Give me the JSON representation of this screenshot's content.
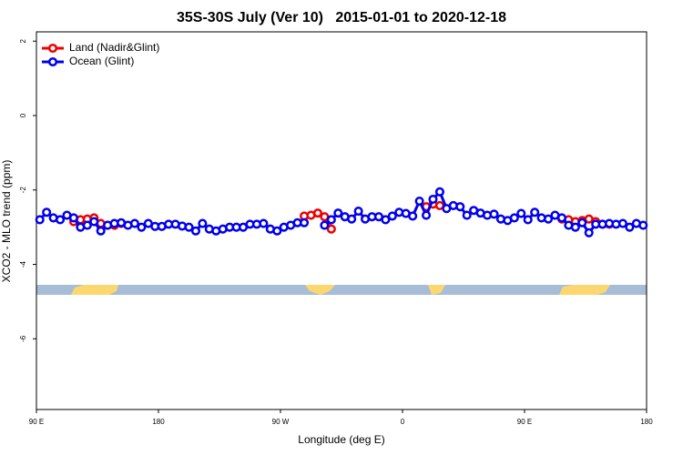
{
  "chart_data": {
    "type": "line",
    "title": "35S-30S July (Ver 10)   2015-01-01 to 2020-12-18",
    "x_label": "Longitude (deg E)",
    "y_label": "XCO2 - MLO trend (ppm)",
    "xlim": [
      90,
      540
    ],
    "xticks": [
      {
        "value": 90,
        "label": "90 E"
      },
      180,
      {
        "value": 270,
        "label": "90 W"
      },
      {
        "value": 360,
        "label": "0"
      },
      {
        "value": 450,
        "label": "90 E"
      },
      {
        "value": 540,
        "label": "180"
      }
    ],
    "ylim": [
      -7.9,
      2.25
    ],
    "yticks": [
      2,
      0,
      -2,
      -4,
      -6
    ],
    "legend": "top-left",
    "series": [
      {
        "name": "Land (Nadir&Glint)",
        "color": "#ee0000",
        "x": [
          117.5,
          122.5,
          127.5,
          132.5,
          137.5,
          142.5,
          147.5,
          152.5,
          157.5,
          287.5,
          292.5,
          297.5,
          302.5,
          307.5,
          312.5,
          377.5,
          382.5,
          387.5,
          392.5,
          477.5,
          482.5,
          487.5,
          492.5,
          497.5,
          502.5,
          507.5,
          512.5
        ],
        "values": [
          -2.85,
          -2.8,
          -2.78,
          -2.75,
          -2.9,
          -2.95,
          -2.95,
          -2.9,
          null,
          -2.7,
          -2.68,
          -2.62,
          -2.72,
          -3.05,
          null,
          -2.45,
          -2.38,
          -2.42,
          null,
          -2.78,
          -2.8,
          -2.85,
          -2.82,
          -2.78,
          -2.85,
          -2.92,
          -2.92
        ]
      },
      {
        "name": "Ocean (Glint)",
        "color": "#0000ee",
        "x": [
          92.5,
          97.5,
          102.5,
          107.5,
          112.5,
          117.5,
          122.5,
          127.5,
          132.5,
          137.5,
          142.5,
          147.5,
          152.5,
          157.5,
          162.5,
          167.5,
          172.5,
          177.5,
          182.5,
          187.5,
          192.5,
          197.5,
          202.5,
          207.5,
          212.5,
          217.5,
          222.5,
          227.5,
          232.5,
          237.5,
          242.5,
          247.5,
          252.5,
          257.5,
          262.5,
          267.5,
          272.5,
          277.5,
          282.5,
          287.5,
          292.5,
          297.5,
          302.5,
          307.5,
          312.5,
          317.5,
          322.5,
          327.5,
          332.5,
          337.5,
          342.5,
          347.5,
          352.5,
          357.5,
          362.5,
          367.5,
          372.5,
          377.5,
          382.5,
          387.5,
          392.5,
          397.5,
          402.5,
          407.5,
          412.5,
          417.5,
          422.5,
          427.5,
          432.5,
          437.5,
          442.5,
          447.5,
          452.5,
          457.5,
          462.5,
          467.5,
          472.5,
          477.5,
          482.5,
          487.5,
          492.5,
          497.5,
          502.5,
          507.5,
          512.5,
          517.5,
          522.5,
          527.5,
          532.5,
          537.5
        ],
        "values": [
          -2.8,
          -2.6,
          -2.75,
          -2.8,
          -2.68,
          -2.75,
          -3.0,
          -2.95,
          -2.85,
          -3.1,
          -2.95,
          -2.9,
          -2.88,
          -2.95,
          -2.9,
          -3.0,
          -2.9,
          -2.98,
          -2.98,
          -2.92,
          -2.92,
          -2.97,
          -3.0,
          -3.1,
          -2.9,
          -3.05,
          -3.1,
          -3.05,
          -3.0,
          -3.0,
          -3.0,
          -2.92,
          -2.92,
          -2.9,
          -3.05,
          -3.1,
          -3.0,
          -2.95,
          -2.88,
          -2.88,
          null,
          null,
          -2.95,
          -2.8,
          -2.62,
          -2.72,
          -2.78,
          -2.57,
          -2.78,
          -2.72,
          -2.72,
          -2.8,
          -2.7,
          -2.6,
          -2.63,
          -2.7,
          -2.3,
          -2.68,
          -2.25,
          -2.05,
          -2.5,
          -2.42,
          -2.45,
          -2.68,
          -2.55,
          -2.62,
          -2.68,
          -2.65,
          -2.78,
          -2.82,
          -2.75,
          -2.63,
          -2.8,
          -2.6,
          -2.75,
          -2.78,
          -2.68,
          -2.75,
          -2.95,
          -3.0,
          -2.88,
          -3.15,
          -2.92,
          -2.92,
          -2.9,
          -2.92,
          -2.9,
          -3.0,
          -2.9,
          -2.95
        ]
      }
    ]
  }
}
